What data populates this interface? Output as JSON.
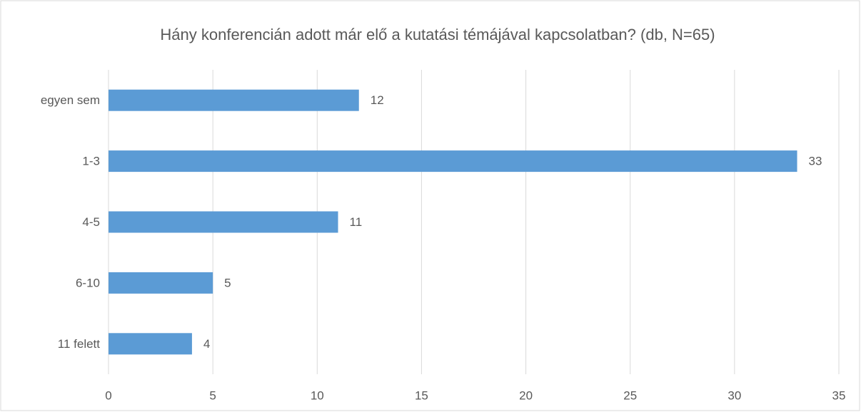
{
  "chart_data": {
    "type": "hbar",
    "title": "Hány konferencián adott már elő a kutatási témájával kapcsolatban? (db, N=65)",
    "categories": [
      "egyen sem",
      "1-3",
      "4-5",
      "6-10",
      "11 felett"
    ],
    "values": [
      12,
      33,
      11,
      5,
      4
    ],
    "color": "#5b9bd5",
    "xlim": [
      0,
      35
    ],
    "xticks": [
      0,
      5,
      10,
      15,
      20,
      25,
      30,
      35
    ],
    "grid": true
  }
}
